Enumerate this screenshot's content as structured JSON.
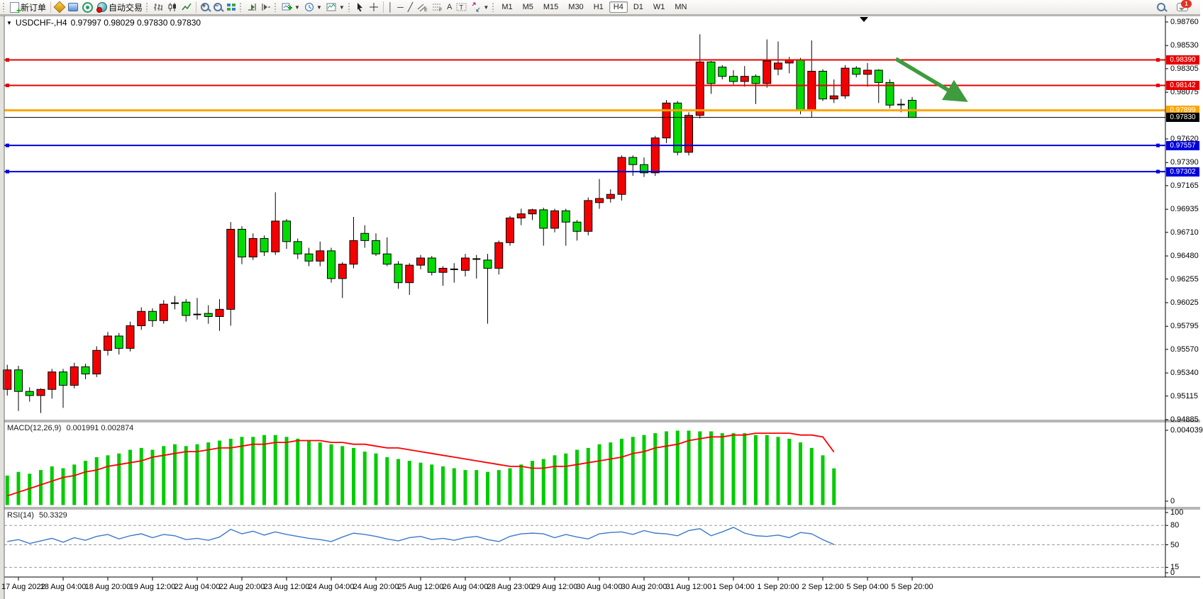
{
  "toolbar": {
    "new_order_label": "新订单",
    "autotrading_label": "自动交易",
    "timeframe_buttons": [
      "M1",
      "M5",
      "M15",
      "M30",
      "H1",
      "H4",
      "D1",
      "W1",
      "MN"
    ],
    "active_timeframe": "H4",
    "chat_badge": "1"
  },
  "chart": {
    "title_symbol": "USDCHF-,H4",
    "title_quote": "0.97997 0.98029 0.97830 0.97830",
    "macd_label": "MACD(12,26,9)",
    "macd_values": "0.001991 0.002874",
    "rsi_label": "RSI(14)",
    "rsi_value": "50.3329"
  },
  "colors": {
    "bull_candle": "#f50000",
    "bear_candle": "#00dc00",
    "macd_bar": "#00cc00",
    "macd_signal": "#ff0000",
    "rsi_line": "#3c78c8",
    "resistance": "#e80000",
    "support": "#0000dc",
    "pivot_orange": "#ffa500",
    "bid_black": "#000000",
    "arrow_green": "#3e9b3e"
  },
  "chart_data": {
    "type": "candlestick",
    "symbol": "USDCHF-",
    "period": "H4",
    "ylim": [
      0.94885,
      0.98822
    ],
    "grid": false,
    "x_labels": [
      "17 Aug 2022",
      "18 Aug 04:00",
      "18 Aug 20:00",
      "19 Aug 12:00",
      "22 Aug 04:00",
      "22 Aug 20:00",
      "23 Aug 12:00",
      "24 Aug 04:00",
      "24 Aug 20:00",
      "25 Aug 12:00",
      "26 Aug 04:00",
      "28 Aug 23:00",
      "29 Aug 12:00",
      "30 Aug 04:00",
      "30 Aug 20:00",
      "31 Aug 12:00",
      "1 Sep 04:00",
      "1 Sep 20:00",
      "2 Sep 12:00",
      "5 Sep 04:00",
      "5 Sep 20:00"
    ],
    "price_axis_ticks": [
      "0.98760",
      "0.98530",
      "0.98305",
      "0.98075",
      "0.97620",
      "0.97390",
      "0.97165",
      "0.96935",
      "0.96710",
      "0.96480",
      "0.96255",
      "0.96025",
      "0.95795",
      "0.95570",
      "0.95340",
      "0.95115",
      "0.94885"
    ],
    "hlines": [
      {
        "name": "resistance-line-upper",
        "price": 0.9839,
        "label": "0.98390",
        "color": "#e80000",
        "width": 2,
        "handle": true
      },
      {
        "name": "resistance-line-lower",
        "price": 0.98142,
        "label": "0.98142",
        "color": "#e80000",
        "width": 2,
        "handle": true
      },
      {
        "name": "pivot-line-orange",
        "price": 0.97899,
        "label": "0.97899",
        "color": "#ffa500",
        "width": 3,
        "handle": false
      },
      {
        "name": "bid-price-line",
        "price": 0.9783,
        "label": "0.97830",
        "color": "#000000",
        "width": 1,
        "handle": false
      },
      {
        "name": "support-line-upper",
        "price": 0.97557,
        "label": "0.97557",
        "color": "#0000dc",
        "width": 2,
        "handle": true
      },
      {
        "name": "support-line-lower",
        "price": 0.97302,
        "label": "0.97302",
        "color": "#0000dc",
        "width": 2,
        "handle": true
      }
    ],
    "trend_arrow": {
      "x1": 1263,
      "y1": 83,
      "x2": 1360,
      "y2": 141,
      "color": "#3e9b3e"
    },
    "shift_marker_x": 1218,
    "candles": [
      [
        0.9518,
        0.9542,
        0.9512,
        0.9537
      ],
      [
        0.9537,
        0.9541,
        0.9497,
        0.9516
      ],
      [
        0.9516,
        0.952,
        0.9506,
        0.9512
      ],
      [
        0.9512,
        0.9519,
        0.9495,
        0.9518
      ],
      [
        0.9518,
        0.9538,
        0.9509,
        0.9535
      ],
      [
        0.9535,
        0.9538,
        0.95,
        0.9522
      ],
      [
        0.9522,
        0.9544,
        0.9519,
        0.954
      ],
      [
        0.954,
        0.9543,
        0.9528,
        0.9533
      ],
      [
        0.9533,
        0.956,
        0.953,
        0.9556
      ],
      [
        0.9556,
        0.9574,
        0.9551,
        0.957
      ],
      [
        0.957,
        0.9573,
        0.9552,
        0.9558
      ],
      [
        0.9558,
        0.9584,
        0.9555,
        0.958
      ],
      [
        0.958,
        0.9598,
        0.9576,
        0.9594
      ],
      [
        0.9594,
        0.9597,
        0.9579,
        0.9585
      ],
      [
        0.9585,
        0.9605,
        0.9582,
        0.9601
      ],
      [
        0.9601,
        0.9609,
        0.9596,
        0.9603
      ],
      [
        0.9603,
        0.9606,
        0.9584,
        0.959
      ],
      [
        0.959,
        0.9607,
        0.9586,
        0.9592
      ],
      [
        0.9592,
        0.96,
        0.9582,
        0.9589
      ],
      [
        0.9589,
        0.9606,
        0.9575,
        0.9596
      ],
      [
        0.9596,
        0.9681,
        0.958,
        0.9674
      ],
      [
        0.9674,
        0.9677,
        0.964,
        0.9647
      ],
      [
        0.9647,
        0.967,
        0.9644,
        0.9665
      ],
      [
        0.9665,
        0.9668,
        0.9648,
        0.9652
      ],
      [
        0.9652,
        0.971,
        0.9649,
        0.9682
      ],
      [
        0.9682,
        0.9684,
        0.9655,
        0.9662
      ],
      [
        0.9662,
        0.9665,
        0.9645,
        0.965
      ],
      [
        0.965,
        0.9656,
        0.9638,
        0.9643
      ],
      [
        0.9643,
        0.9662,
        0.9638,
        0.9653
      ],
      [
        0.9653,
        0.9656,
        0.9622,
        0.9626
      ],
      [
        0.9626,
        0.9642,
        0.9607,
        0.964
      ],
      [
        0.964,
        0.9686,
        0.9636,
        0.9663
      ],
      [
        0.967,
        0.9678,
        0.9656,
        0.9663
      ],
      [
        0.9663,
        0.967,
        0.9648,
        0.965
      ],
      [
        0.965,
        0.9666,
        0.9638,
        0.964
      ],
      [
        0.964,
        0.9643,
        0.9616,
        0.9622
      ],
      [
        0.9622,
        0.9641,
        0.961,
        0.9639
      ],
      [
        0.9639,
        0.9649,
        0.9635,
        0.9646
      ],
      [
        0.9646,
        0.9648,
        0.9629,
        0.9632
      ],
      [
        0.9632,
        0.9638,
        0.9619,
        0.9636
      ],
      [
        0.9636,
        0.9641,
        0.9622,
        0.9634
      ],
      [
        0.9634,
        0.965,
        0.9628,
        0.9646
      ],
      [
        0.9646,
        0.9649,
        0.9626,
        0.9644
      ],
      [
        0.9644,
        0.965,
        0.9582,
        0.9636
      ],
      [
        0.9636,
        0.9663,
        0.963,
        0.9661
      ],
      [
        0.9661,
        0.9687,
        0.9658,
        0.9685
      ],
      [
        0.9685,
        0.9694,
        0.9678,
        0.9689
      ],
      [
        0.9689,
        0.9694,
        0.9683,
        0.9693
      ],
      [
        0.9693,
        0.9695,
        0.9658,
        0.9675
      ],
      [
        0.9675,
        0.9694,
        0.9671,
        0.9692
      ],
      [
        0.9692,
        0.9694,
        0.9658,
        0.9681
      ],
      [
        0.9681,
        0.9683,
        0.9663,
        0.9672
      ],
      [
        0.9672,
        0.9705,
        0.9668,
        0.9702
      ],
      [
        0.97,
        0.9723,
        0.9694,
        0.9704
      ],
      [
        0.9704,
        0.9713,
        0.97,
        0.9708
      ],
      [
        0.9708,
        0.9746,
        0.9702,
        0.9744
      ],
      [
        0.9744,
        0.9746,
        0.9726,
        0.9737
      ],
      [
        0.9737,
        0.9744,
        0.9725,
        0.9729
      ],
      [
        0.9729,
        0.9765,
        0.9726,
        0.9763
      ],
      [
        0.9763,
        0.98,
        0.9758,
        0.9797
      ],
      [
        0.9797,
        0.9799,
        0.9746,
        0.9749
      ],
      [
        0.9749,
        0.9788,
        0.9746,
        0.9785
      ],
      [
        0.9785,
        0.9864,
        0.9782,
        0.9837
      ],
      [
        0.9837,
        0.9838,
        0.9806,
        0.9816
      ],
      [
        0.9832,
        0.9834,
        0.982,
        0.9823
      ],
      [
        0.9823,
        0.9829,
        0.9815,
        0.9818
      ],
      [
        0.9818,
        0.9833,
        0.9813,
        0.9823
      ],
      [
        0.9823,
        0.9825,
        0.9796,
        0.9816
      ],
      [
        0.9816,
        0.9859,
        0.9812,
        0.9838
      ],
      [
        0.983,
        0.9857,
        0.9824,
        0.9836
      ],
      [
        0.9836,
        0.9842,
        0.9826,
        0.9839
      ],
      [
        0.9839,
        0.9841,
        0.9786,
        0.979
      ],
      [
        0.979,
        0.9858,
        0.9783,
        0.9828
      ],
      [
        0.9828,
        0.983,
        0.9799,
        0.9801
      ],
      [
        0.9801,
        0.982,
        0.9797,
        0.9804
      ],
      [
        0.9804,
        0.9834,
        0.9801,
        0.9831
      ],
      [
        0.9831,
        0.9833,
        0.9822,
        0.9825
      ],
      [
        0.9825,
        0.9836,
        0.9813,
        0.9829
      ],
      [
        0.9829,
        0.983,
        0.9797,
        0.9817
      ],
      [
        0.9817,
        0.982,
        0.9792,
        0.9795
      ],
      [
        0.9795,
        0.9801,
        0.9788,
        0.9796
      ],
      [
        0.97997,
        0.98029,
        0.9783,
        0.9783
      ]
    ],
    "macd": {
      "label": "MACD(12,26,9)",
      "main_value": "0.001991",
      "signal_value": "0.002874",
      "axis_max": "0.004039",
      "axis_min": "0",
      "histogram": [
        0.0016,
        0.0018,
        0.0017,
        0.0019,
        0.0021,
        0.002,
        0.0022,
        0.0024,
        0.0026,
        0.0027,
        0.0028,
        0.003,
        0.0031,
        0.003,
        0.0032,
        0.0033,
        0.0032,
        0.0033,
        0.0034,
        0.0035,
        0.0036,
        0.0037,
        0.0037,
        0.0038,
        0.0038,
        0.0037,
        0.0036,
        0.0035,
        0.0034,
        0.0033,
        0.0032,
        0.0031,
        0.0029,
        0.0028,
        0.0026,
        0.0025,
        0.0024,
        0.0023,
        0.0022,
        0.0021,
        0.002,
        0.0019,
        0.0019,
        0.0018,
        0.0019,
        0.002,
        0.0022,
        0.0024,
        0.0025,
        0.0027,
        0.0028,
        0.003,
        0.0031,
        0.0033,
        0.0034,
        0.0036,
        0.0037,
        0.0038,
        0.0039,
        0.004,
        0.004039,
        0.004039,
        0.004,
        0.004,
        0.0039,
        0.0039,
        0.0039,
        0.0038,
        0.0038,
        0.0037,
        0.0036,
        0.0034,
        0.0031,
        0.0027,
        0.001991
      ],
      "signal": [
        0.0005,
        0.0007,
        0.0009,
        0.0011,
        0.0013,
        0.0015,
        0.0016,
        0.0018,
        0.0019,
        0.0021,
        0.0022,
        0.0023,
        0.0024,
        0.0026,
        0.0027,
        0.0028,
        0.0029,
        0.0029,
        0.003,
        0.0031,
        0.0031,
        0.0032,
        0.0033,
        0.0033,
        0.0034,
        0.0034,
        0.0035,
        0.0035,
        0.0035,
        0.0034,
        0.0034,
        0.0033,
        0.0033,
        0.0032,
        0.0031,
        0.0031,
        0.003,
        0.0029,
        0.0028,
        0.0027,
        0.0026,
        0.0025,
        0.0024,
        0.0023,
        0.0022,
        0.0021,
        0.0021,
        0.002,
        0.002,
        0.0021,
        0.0021,
        0.0022,
        0.0023,
        0.0024,
        0.0025,
        0.0026,
        0.0028,
        0.0029,
        0.0031,
        0.0032,
        0.0033,
        0.0035,
        0.0036,
        0.0037,
        0.0037,
        0.0038,
        0.0038,
        0.0039,
        0.0039,
        0.0039,
        0.0039,
        0.0038,
        0.0038,
        0.0037,
        0.002874
      ]
    },
    "rsi": {
      "label": "RSI(14)",
      "value": "50.3329",
      "levels": [
        80,
        50,
        15
      ],
      "axis_labels": [
        "100",
        "80",
        "50",
        "15",
        "0"
      ],
      "values": [
        55,
        58,
        52,
        56,
        60,
        54,
        61,
        57,
        63,
        66,
        59,
        64,
        67,
        61,
        66,
        64,
        58,
        60,
        57,
        62,
        74,
        67,
        71,
        65,
        70,
        66,
        63,
        60,
        58,
        55,
        62,
        68,
        66,
        63,
        59,
        56,
        61,
        63,
        58,
        60,
        57,
        61,
        63,
        58,
        55,
        63,
        67,
        68,
        67,
        61,
        66,
        62,
        59,
        67,
        69,
        70,
        66,
        72,
        68,
        67,
        64,
        72,
        75,
        64,
        70,
        77,
        68,
        64,
        63,
        65,
        61,
        69,
        67,
        58,
        50.33
      ]
    }
  }
}
